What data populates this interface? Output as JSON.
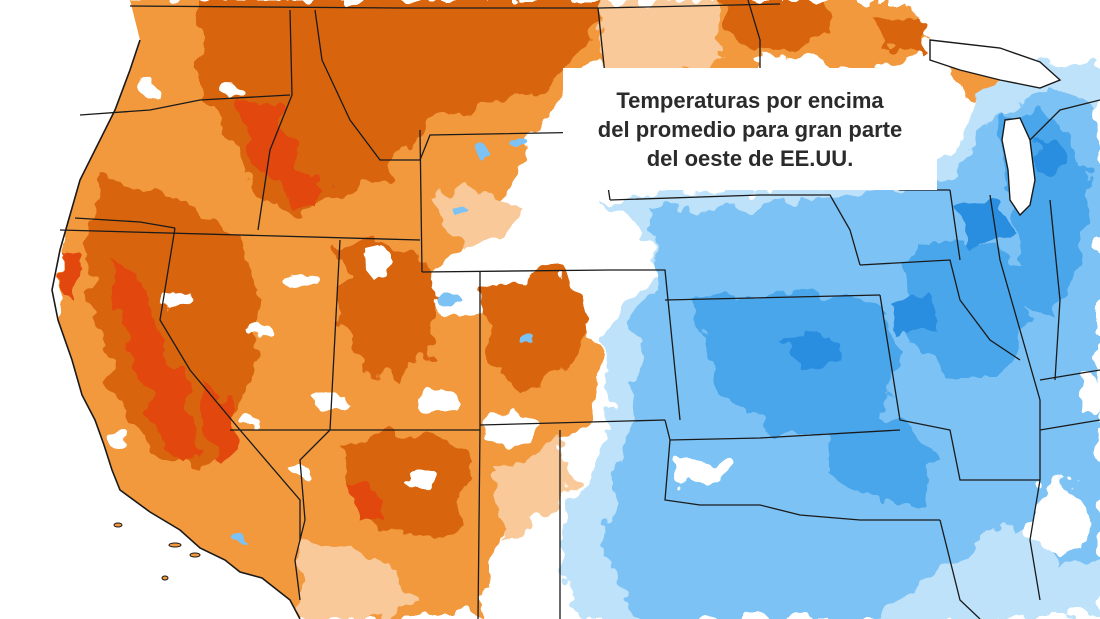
{
  "caption": {
    "text": "Temperaturas por encima\ndel promedio para gran parte\ndel oeste de EE.UU."
  },
  "legend_colors": {
    "much_above": "#e2470f",
    "well_above": "#d8650f",
    "above": "#f2993e",
    "slightly_above": "#f9c99a",
    "near_normal": "#ffffff",
    "slightly_below": "#bfe2fb",
    "below": "#7cc2f4",
    "well_below": "#4aa6ea",
    "much_below": "#2b8ee0",
    "border": "#1a1a1a"
  }
}
